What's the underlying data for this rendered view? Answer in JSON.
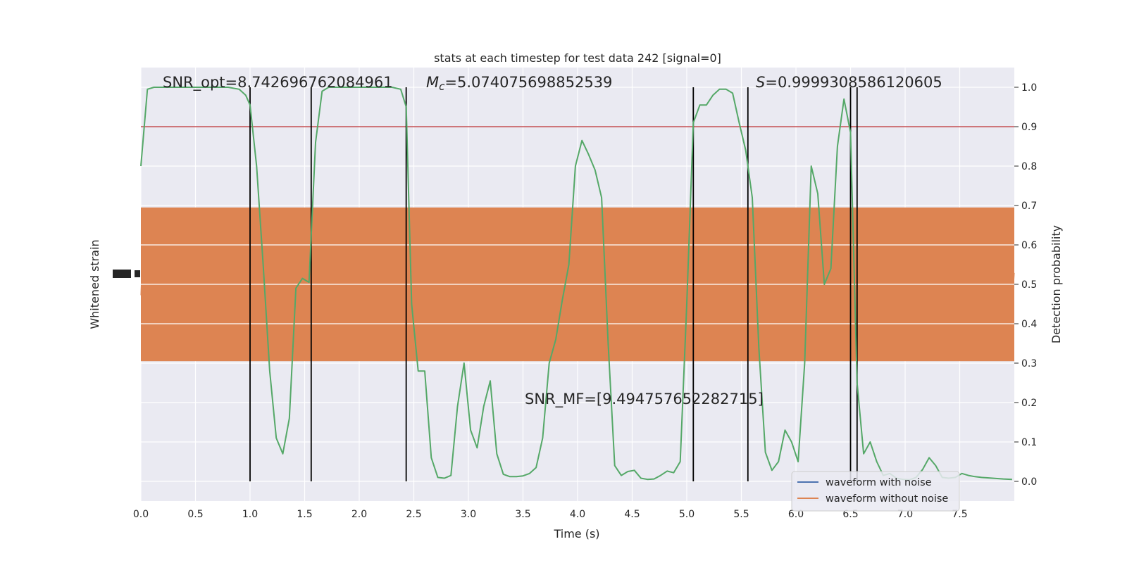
{
  "chart_data": {
    "type": "line",
    "title": "stats at each timestep for test data 242 [signal=0]",
    "xlabel": "Time (s)",
    "ylabel_left": "Whitened strain",
    "ylabel_right": "Detection probability",
    "xlim": [
      0,
      8.0
    ],
    "ylim_right": [
      -0.05,
      1.05
    ],
    "x_ticks": [
      "0.0",
      "0.5",
      "1.0",
      "1.5",
      "2.0",
      "2.5",
      "3.0",
      "3.5",
      "4.0",
      "4.5",
      "5.0",
      "5.5",
      "6.0",
      "6.5",
      "7.0",
      "7.5"
    ],
    "y_ticks_right": [
      "0.0",
      "0.1",
      "0.2",
      "0.3",
      "0.4",
      "0.5",
      "0.6",
      "0.7",
      "0.8",
      "0.9",
      "1.0"
    ],
    "grid": true,
    "legend_position": "bottom-right",
    "annotations": {
      "snr_opt": "SNR_opt=8.742696762084961",
      "mc_symbol": "M",
      "mc_subscript": "c",
      "mc_value": "=5.074075698852539",
      "s_symbol": "S",
      "s_value": "=0.9999308586120605",
      "snr_mf": "SNR_MF=[9.494757652282715]"
    },
    "threshold": {
      "y": 0.9,
      "color": "#c44e52"
    },
    "vertical_lines_x": [
      1.0,
      1.56,
      2.43,
      5.06,
      5.56,
      6.5,
      6.56
    ],
    "series": [
      {
        "name": "waveform with noise",
        "color": "#4c72b0",
        "band_center": 0.5,
        "band_halfwidth": 0.36,
        "style": "noise"
      },
      {
        "name": "waveform without noise",
        "color": "#dd8452",
        "band_center": 0.5,
        "band_halfwidth": 0.36,
        "style": "noise"
      },
      {
        "color": "#55a868",
        "style": "line",
        "x": [
          0.0,
          0.06,
          0.12,
          0.2,
          0.3,
          0.4,
          0.5,
          0.6,
          0.7,
          0.8,
          0.9,
          0.96,
          1.0,
          1.06,
          1.12,
          1.18,
          1.24,
          1.3,
          1.36,
          1.42,
          1.48,
          1.54,
          1.6,
          1.66,
          1.72,
          1.8,
          1.9,
          2.0,
          2.1,
          2.2,
          2.3,
          2.38,
          2.43,
          2.48,
          2.54,
          2.6,
          2.66,
          2.72,
          2.78,
          2.84,
          2.9,
          2.96,
          3.02,
          3.08,
          3.14,
          3.2,
          3.26,
          3.32,
          3.38,
          3.44,
          3.5,
          3.56,
          3.62,
          3.68,
          3.74,
          3.8,
          3.86,
          3.92,
          3.98,
          4.04,
          4.1,
          4.16,
          4.22,
          4.28,
          4.34,
          4.4,
          4.46,
          4.52,
          4.58,
          4.64,
          4.7,
          4.76,
          4.82,
          4.88,
          4.94,
          5.0,
          5.06,
          5.12,
          5.18,
          5.24,
          5.3,
          5.36,
          5.42,
          5.48,
          5.54,
          5.6,
          5.66,
          5.72,
          5.78,
          5.84,
          5.9,
          5.96,
          6.02,
          6.08,
          6.14,
          6.2,
          6.26,
          6.32,
          6.38,
          6.44,
          6.5,
          6.56,
          6.62,
          6.68,
          6.74,
          6.8,
          6.86,
          6.92,
          6.98,
          7.04,
          7.1,
          7.16,
          7.22,
          7.28,
          7.34,
          7.4,
          7.46,
          7.52,
          7.58,
          7.64,
          7.7,
          7.8,
          7.9,
          7.98
        ],
        "y": [
          0.8,
          0.995,
          1.0,
          1.0,
          1.0,
          1.0,
          1.0,
          1.0,
          1.0,
          1.0,
          0.995,
          0.98,
          0.955,
          0.8,
          0.55,
          0.28,
          0.11,
          0.07,
          0.16,
          0.49,
          0.515,
          0.505,
          0.86,
          0.99,
          1.0,
          1.0,
          1.0,
          1.0,
          1.0,
          1.0,
          1.0,
          0.995,
          0.95,
          0.45,
          0.28,
          0.28,
          0.06,
          0.01,
          0.008,
          0.015,
          0.19,
          0.3,
          0.13,
          0.085,
          0.19,
          0.255,
          0.07,
          0.018,
          0.012,
          0.012,
          0.014,
          0.02,
          0.035,
          0.11,
          0.3,
          0.36,
          0.46,
          0.55,
          0.8,
          0.865,
          0.83,
          0.79,
          0.72,
          0.35,
          0.04,
          0.015,
          0.025,
          0.028,
          0.008,
          0.005,
          0.006,
          0.015,
          0.026,
          0.022,
          0.05,
          0.45,
          0.91,
          0.955,
          0.955,
          0.98,
          0.995,
          0.995,
          0.985,
          0.91,
          0.84,
          0.72,
          0.34,
          0.074,
          0.028,
          0.05,
          0.13,
          0.1,
          0.05,
          0.3,
          0.8,
          0.73,
          0.5,
          0.54,
          0.85,
          0.97,
          0.885,
          0.25,
          0.07,
          0.1,
          0.05,
          0.015,
          0.02,
          0.008,
          0.005,
          0.004,
          0.01,
          0.03,
          0.06,
          0.04,
          0.01,
          0.008,
          0.01,
          0.02,
          0.015,
          0.012,
          0.01,
          0.008,
          0.006,
          0.005
        ]
      }
    ]
  }
}
